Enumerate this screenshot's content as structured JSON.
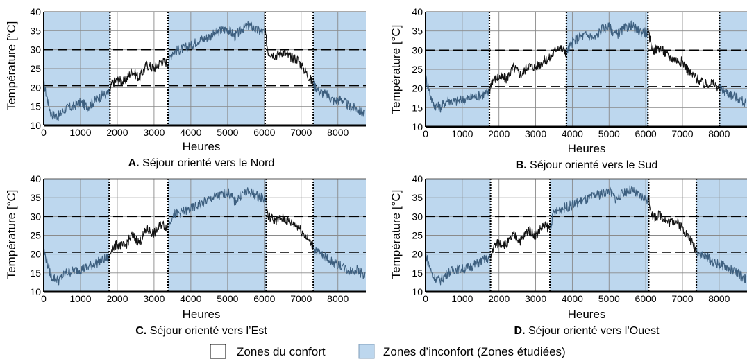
{
  "chart_data": [
    {
      "type": "line",
      "panel_letter": "A.",
      "caption": "Séjour orienté vers le Nord",
      "xlabel": "Heures",
      "ylabel": "Température [°C]",
      "xlim": [
        0,
        8760
      ],
      "ylim": [
        10,
        40
      ],
      "xticks": [
        0,
        1000,
        2000,
        3000,
        4000,
        5000,
        6000,
        7000,
        8000
      ],
      "yticks": [
        10,
        15,
        20,
        25,
        30,
        35,
        40
      ],
      "grid": true,
      "comfort_limits": [
        20.5,
        30
      ],
      "zone_boundaries": [
        1800,
        3380,
        6020,
        7330
      ],
      "discomfort_zones": [
        [
          0,
          1800
        ],
        [
          3380,
          6020
        ],
        [
          7330,
          8760
        ]
      ],
      "series": [
        {
          "x": [
            0,
            200,
            400,
            600,
            800,
            1000,
            1200,
            1400,
            1600,
            1800,
            1850,
            2000,
            2200,
            2400,
            2600,
            2800,
            3000,
            3200,
            3380,
            3500,
            3700,
            4000,
            4200,
            4400,
            4600,
            4800,
            5000,
            5200,
            5400,
            5600,
            5800,
            6020,
            6100,
            6300,
            6500,
            6700,
            6900,
            7100,
            7330,
            7500,
            7700,
            7900,
            8100,
            8300,
            8500,
            8700
          ],
          "y": [
            21,
            13,
            12.5,
            14.5,
            15,
            16,
            15,
            16.5,
            18,
            18.5,
            21,
            22,
            21.5,
            24.5,
            22.5,
            26,
            25,
            27,
            26.5,
            29.5,
            30,
            31,
            32.5,
            33,
            34,
            35,
            35.5,
            33.5,
            35.5,
            36.5,
            35,
            34.5,
            29.5,
            28.5,
            29.5,
            28,
            27.5,
            24.5,
            21,
            19,
            18,
            16.5,
            17,
            15,
            14.5,
            13
          ]
        }
      ]
    },
    {
      "type": "line",
      "panel_letter": "B.",
      "caption": "Séjour orienté vers le Sud",
      "xlabel": "Heures",
      "ylabel": "Température [°C]",
      "xlim": [
        0,
        8760
      ],
      "ylim": [
        10,
        40
      ],
      "xticks": [
        0,
        1000,
        2000,
        3000,
        4000,
        5000,
        6000,
        7000,
        8000
      ],
      "yticks": [
        10,
        15,
        20,
        25,
        30,
        35,
        40
      ],
      "grid": true,
      "comfort_limits": [
        20.5,
        30
      ],
      "zone_boundaries": [
        1740,
        3840,
        6060,
        8010
      ],
      "discomfort_zones": [
        [
          0,
          1740
        ],
        [
          3840,
          6060
        ],
        [
          8010,
          8760
        ]
      ],
      "series": [
        {
          "x": [
            0,
            200,
            400,
            600,
            800,
            1000,
            1200,
            1400,
            1600,
            1740,
            1800,
            2000,
            2200,
            2400,
            2600,
            2800,
            3000,
            3200,
            3400,
            3600,
            3840,
            4000,
            4200,
            4400,
            4600,
            4800,
            5000,
            5200,
            5400,
            5600,
            5800,
            6060,
            6200,
            6400,
            6600,
            6800,
            7000,
            7200,
            7400,
            7600,
            7800,
            8010,
            8200,
            8400,
            8600,
            8700
          ],
          "y": [
            23,
            16,
            15,
            17,
            16.5,
            17,
            17.5,
            18,
            18.5,
            19,
            22,
            23,
            22.5,
            25.5,
            23.5,
            26,
            25.5,
            27,
            28,
            31,
            29.5,
            32,
            33.5,
            34,
            33,
            35.5,
            36,
            34,
            35.5,
            36.5,
            35,
            34.5,
            30,
            30.5,
            28.5,
            27.5,
            27,
            24,
            22.5,
            21,
            21.5,
            20,
            19,
            18,
            17,
            16
          ]
        }
      ]
    },
    {
      "type": "line",
      "panel_letter": "C.",
      "caption": "Séjour orienté vers l’Est",
      "xlabel": "Heures",
      "ylabel": "Température [°C]",
      "xlim": [
        0,
        8760
      ],
      "ylim": [
        10,
        40
      ],
      "xticks": [
        0,
        1000,
        2000,
        3000,
        4000,
        5000,
        6000,
        7000,
        8000
      ],
      "yticks": [
        10,
        15,
        20,
        25,
        30,
        35,
        40
      ],
      "grid": true,
      "comfort_limits": [
        20.5,
        30
      ],
      "zone_boundaries": [
        1780,
        3380,
        6050,
        7330
      ],
      "discomfort_zones": [
        [
          0,
          1780
        ],
        [
          3380,
          6050
        ],
        [
          7330,
          8760
        ]
      ],
      "series": [
        {
          "x": [
            0,
            200,
            400,
            600,
            800,
            1000,
            1200,
            1400,
            1600,
            1780,
            1850,
            2000,
            2200,
            2400,
            2600,
            2800,
            3000,
            3200,
            3380,
            3500,
            3700,
            4000,
            4200,
            4400,
            4600,
            4800,
            5000,
            5200,
            5400,
            5600,
            5800,
            6050,
            6100,
            6300,
            6500,
            6700,
            6900,
            7100,
            7330,
            7500,
            7700,
            7900,
            8100,
            8300,
            8500,
            8700
          ],
          "y": [
            21,
            14,
            13,
            15,
            15.5,
            16,
            16.5,
            17.5,
            18.5,
            19,
            21.5,
            22.5,
            22,
            25,
            23,
            26.5,
            25.5,
            28,
            27,
            30.5,
            31,
            32,
            33,
            34,
            35,
            35.5,
            36.5,
            34,
            36,
            36.5,
            35.5,
            34.5,
            30,
            29,
            29.5,
            28.5,
            27.5,
            25,
            22,
            20,
            19,
            17.5,
            17,
            15.5,
            16,
            14.5
          ]
        }
      ]
    },
    {
      "type": "line",
      "panel_letter": "D.",
      "caption": "Séjour orienté vers l’Ouest",
      "xlabel": "Heures",
      "ylabel": "Température [°C]",
      "xlim": [
        0,
        8760
      ],
      "ylim": [
        10,
        40
      ],
      "xticks": [
        0,
        1000,
        2000,
        3000,
        4000,
        5000,
        6000,
        7000,
        8000
      ],
      "yticks": [
        10,
        15,
        20,
        25,
        30,
        35,
        40
      ],
      "grid": true,
      "comfort_limits": [
        20.5,
        30
      ],
      "zone_boundaries": [
        1770,
        3390,
        6080,
        7380
      ],
      "discomfort_zones": [
        [
          0,
          1770
        ],
        [
          3390,
          6080
        ],
        [
          7380,
          8760
        ]
      ],
      "series": [
        {
          "x": [
            0,
            200,
            400,
            600,
            800,
            1000,
            1200,
            1400,
            1600,
            1770,
            1850,
            2000,
            2200,
            2400,
            2600,
            2800,
            3000,
            3200,
            3390,
            3500,
            3700,
            4000,
            4200,
            4400,
            4600,
            4800,
            5000,
            5200,
            5400,
            5600,
            5800,
            6080,
            6200,
            6400,
            6600,
            6800,
            7000,
            7200,
            7380,
            7500,
            7700,
            7900,
            8100,
            8300,
            8500,
            8700
          ],
          "y": [
            20,
            14,
            13,
            15,
            16,
            16,
            16.5,
            17.5,
            18.5,
            19,
            22,
            23,
            22.5,
            25,
            23.5,
            26.5,
            25,
            27.5,
            27,
            31,
            32,
            33,
            34,
            34.5,
            35.5,
            36,
            37,
            34.5,
            36.5,
            37,
            35.5,
            34.5,
            29.5,
            30.5,
            28.5,
            29,
            27,
            24,
            21,
            20,
            19,
            17.5,
            17,
            16,
            15,
            13.5
          ]
        }
      ]
    }
  ],
  "legend": {
    "comfort_label": "Zones du confort",
    "discomfort_label": "Zones d’inconfort (Zones étudiées)",
    "comfort_color": "#ffffff",
    "discomfort_color": "#bdd7ee"
  },
  "colors": {
    "discomfort_fill": "#bdd7ee",
    "line_in_comfort": "#111111",
    "line_in_discomfort": "#3d5f7f"
  }
}
